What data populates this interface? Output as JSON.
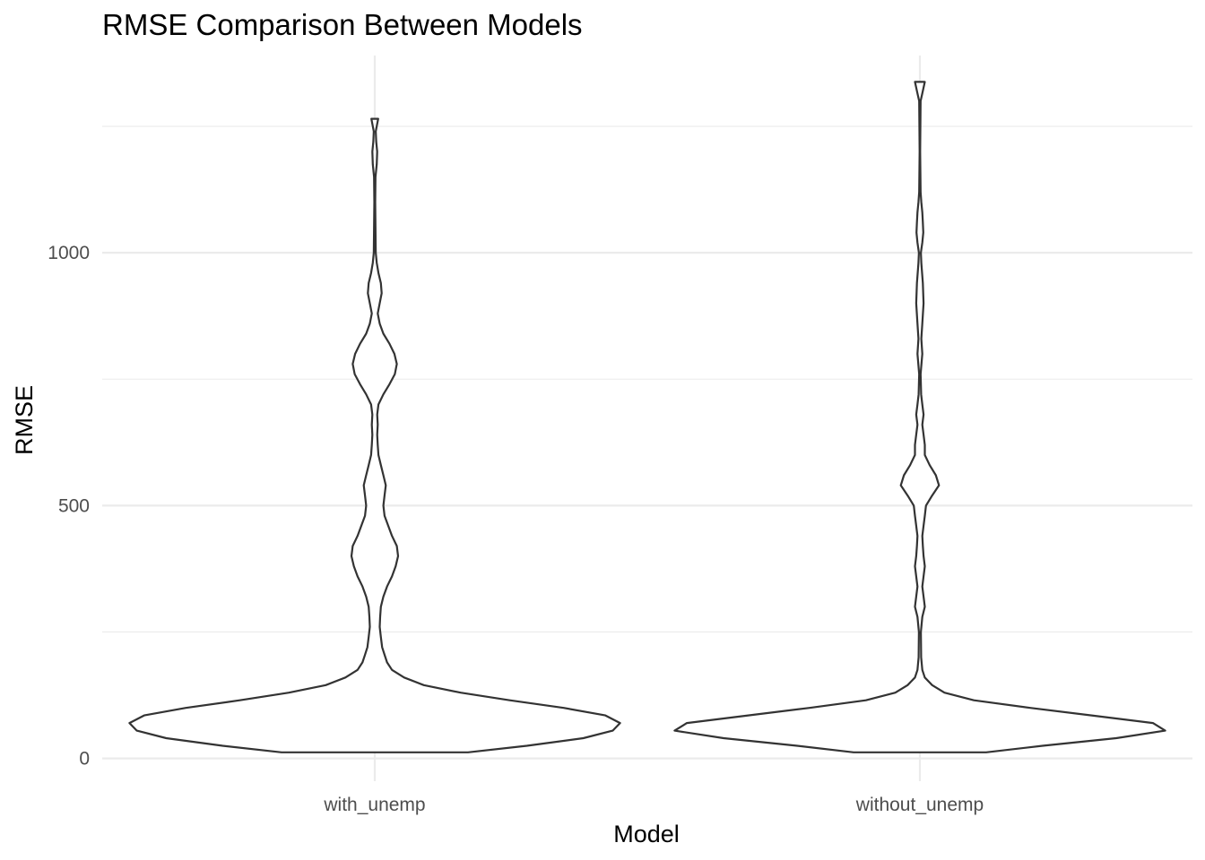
{
  "chart_data": {
    "type": "violin",
    "title": "RMSE Comparison Between Models",
    "xlabel": "Model",
    "ylabel": "RMSE",
    "categories": [
      "with_unemp",
      "without_unemp"
    ],
    "ylim": [
      -45,
      1390
    ],
    "yticks": [
      0,
      500,
      1000
    ],
    "y_minor_ticks": [
      250,
      750,
      1250
    ],
    "grid": true,
    "legend": "none",
    "series": [
      {
        "category": "with_unemp",
        "min": 12,
        "max": 1265,
        "density_profile": [
          [
            12,
            0.38
          ],
          [
            25,
            0.62
          ],
          [
            40,
            0.85
          ],
          [
            55,
            0.97
          ],
          [
            70,
            1.0
          ],
          [
            85,
            0.94
          ],
          [
            100,
            0.77
          ],
          [
            115,
            0.55
          ],
          [
            130,
            0.35
          ],
          [
            145,
            0.2
          ],
          [
            160,
            0.12
          ],
          [
            175,
            0.07
          ],
          [
            190,
            0.05
          ],
          [
            205,
            0.04
          ],
          [
            220,
            0.03
          ],
          [
            240,
            0.025
          ],
          [
            260,
            0.02
          ],
          [
            280,
            0.022
          ],
          [
            300,
            0.025
          ],
          [
            320,
            0.035
          ],
          [
            340,
            0.05
          ],
          [
            360,
            0.07
          ],
          [
            380,
            0.085
          ],
          [
            400,
            0.095
          ],
          [
            420,
            0.09
          ],
          [
            440,
            0.07
          ],
          [
            460,
            0.055
          ],
          [
            480,
            0.04
          ],
          [
            500,
            0.035
          ],
          [
            520,
            0.04
          ],
          [
            540,
            0.045
          ],
          [
            560,
            0.035
          ],
          [
            580,
            0.025
          ],
          [
            600,
            0.015
          ],
          [
            620,
            0.012
          ],
          [
            640,
            0.01
          ],
          [
            660,
            0.012
          ],
          [
            680,
            0.01
          ],
          [
            700,
            0.015
          ],
          [
            720,
            0.035
          ],
          [
            740,
            0.06
          ],
          [
            760,
            0.082
          ],
          [
            780,
            0.09
          ],
          [
            800,
            0.08
          ],
          [
            820,
            0.06
          ],
          [
            840,
            0.035
          ],
          [
            860,
            0.02
          ],
          [
            880,
            0.012
          ],
          [
            900,
            0.02
          ],
          [
            920,
            0.028
          ],
          [
            940,
            0.025
          ],
          [
            960,
            0.015
          ],
          [
            980,
            0.008
          ],
          [
            1000,
            0.004
          ],
          [
            1100,
            0.002
          ],
          [
            1150,
            0.003
          ],
          [
            1175,
            0.008
          ],
          [
            1200,
            0.01
          ],
          [
            1220,
            0.006
          ],
          [
            1240,
            0.004
          ],
          [
            1265,
            0.014
          ]
        ]
      },
      {
        "category": "without_unemp",
        "min": 12,
        "max": 1338,
        "density_profile": [
          [
            12,
            0.27
          ],
          [
            25,
            0.5
          ],
          [
            40,
            0.8
          ],
          [
            55,
            1.0
          ],
          [
            70,
            0.95
          ],
          [
            85,
            0.7
          ],
          [
            100,
            0.45
          ],
          [
            115,
            0.22
          ],
          [
            130,
            0.1
          ],
          [
            145,
            0.05
          ],
          [
            160,
            0.02
          ],
          [
            175,
            0.01
          ],
          [
            200,
            0.005
          ],
          [
            250,
            0.004
          ],
          [
            280,
            0.01
          ],
          [
            300,
            0.02
          ],
          [
            320,
            0.015
          ],
          [
            340,
            0.01
          ],
          [
            360,
            0.015
          ],
          [
            380,
            0.02
          ],
          [
            400,
            0.015
          ],
          [
            420,
            0.012
          ],
          [
            440,
            0.01
          ],
          [
            460,
            0.015
          ],
          [
            480,
            0.02
          ],
          [
            500,
            0.025
          ],
          [
            520,
            0.05
          ],
          [
            540,
            0.078
          ],
          [
            560,
            0.065
          ],
          [
            580,
            0.04
          ],
          [
            600,
            0.02
          ],
          [
            620,
            0.02
          ],
          [
            640,
            0.015
          ],
          [
            660,
            0.01
          ],
          [
            680,
            0.015
          ],
          [
            700,
            0.01
          ],
          [
            720,
            0.005
          ],
          [
            760,
            0.003
          ],
          [
            800,
            0.01
          ],
          [
            830,
            0.006
          ],
          [
            860,
            0.01
          ],
          [
            900,
            0.015
          ],
          [
            940,
            0.012
          ],
          [
            980,
            0.006
          ],
          [
            1000,
            0.004
          ],
          [
            1020,
            0.01
          ],
          [
            1040,
            0.014
          ],
          [
            1060,
            0.012
          ],
          [
            1080,
            0.01
          ],
          [
            1100,
            0.006
          ],
          [
            1120,
            0.003
          ],
          [
            1200,
            0.001
          ],
          [
            1300,
            0.003
          ],
          [
            1315,
            0.01
          ],
          [
            1338,
            0.02
          ]
        ]
      }
    ]
  }
}
